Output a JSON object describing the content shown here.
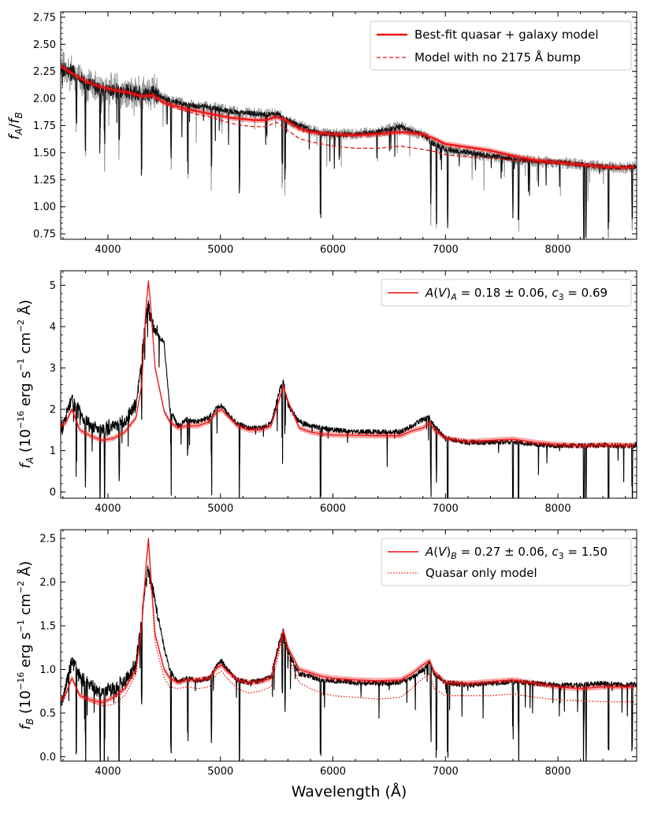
{
  "figure": {
    "xlabel": "Wavelength  (Å)"
  },
  "chart_data": [
    {
      "type": "line",
      "id": "ratio",
      "ylabel": "f_A/f_B",
      "xlim": [
        3580,
        8700
      ],
      "ylim": [
        0.7,
        2.8
      ],
      "xticks": [
        4000,
        5000,
        6000,
        7000,
        8000
      ],
      "yticks": [
        0.75,
        1.0,
        1.25,
        1.5,
        1.75,
        2.0,
        2.25,
        2.5,
        2.75
      ],
      "ytick_labels": [
        "0.75",
        "1.00",
        "1.25",
        "1.50",
        "1.75",
        "2.00",
        "2.25",
        "2.50",
        "2.75"
      ],
      "legend": [
        "Best-fit quasar + galaxy model",
        "Model with no 2175 Å bump"
      ],
      "legend_position": "upper-right",
      "series": [
        {
          "name": "Best-fit quasar + galaxy model",
          "style": "solid",
          "color": "#ee1111",
          "x": [
            3580,
            3700,
            3800,
            3900,
            4000,
            4100,
            4200,
            4300,
            4400,
            4500,
            4600,
            4700,
            4800,
            4900,
            5000,
            5100,
            5200,
            5300,
            5400,
            5500,
            5580,
            5700,
            5800,
            5900,
            6000,
            6200,
            6400,
            6600,
            6800,
            6900,
            7000,
            7200,
            7400,
            7600,
            7800,
            8000,
            8200,
            8400,
            8600,
            8680
          ],
          "y": [
            2.3,
            2.22,
            2.16,
            2.12,
            2.09,
            2.07,
            2.05,
            2.02,
            2.03,
            1.96,
            1.93,
            1.9,
            1.88,
            1.86,
            1.84,
            1.82,
            1.81,
            1.8,
            1.8,
            1.83,
            1.8,
            1.72,
            1.69,
            1.68,
            1.67,
            1.66,
            1.67,
            1.69,
            1.67,
            1.63,
            1.58,
            1.55,
            1.52,
            1.47,
            1.43,
            1.41,
            1.39,
            1.37,
            1.36,
            1.37
          ]
        },
        {
          "name": "Model with no 2175 Å bump",
          "style": "dashed",
          "color": "#ee1111",
          "x": [
            3580,
            3700,
            3800,
            3900,
            4000,
            4100,
            4200,
            4300,
            4400,
            4500,
            4600,
            4700,
            4800,
            4900,
            5000,
            5100,
            5200,
            5300,
            5400,
            5500,
            5580,
            5700,
            5800,
            5900,
            6000,
            6200,
            6400,
            6600,
            6800,
            6900,
            7000,
            7200,
            7400,
            7600,
            7800,
            8000,
            8200,
            8400,
            8600,
            8680
          ],
          "y": [
            2.3,
            2.22,
            2.16,
            2.12,
            2.09,
            2.07,
            2.05,
            2.02,
            2.02,
            1.95,
            1.91,
            1.88,
            1.85,
            1.83,
            1.8,
            1.77,
            1.75,
            1.74,
            1.74,
            1.78,
            1.72,
            1.63,
            1.6,
            1.58,
            1.56,
            1.54,
            1.54,
            1.56,
            1.53,
            1.51,
            1.48,
            1.46,
            1.45,
            1.43,
            1.41,
            1.4,
            1.39,
            1.37,
            1.36,
            1.37
          ]
        },
        {
          "name": "observed flux ratio",
          "style": "noisy",
          "color": "#111111",
          "x": [
            3580,
            3700,
            3800,
            3900,
            4000,
            4100,
            4200,
            4300,
            4400,
            4500,
            4600,
            4700,
            4800,
            4900,
            5000,
            5100,
            5200,
            5300,
            5400,
            5500,
            5580,
            5700,
            5800,
            5900,
            6000,
            6200,
            6400,
            6600,
            6800,
            6900,
            7000,
            7200,
            7400,
            7600,
            7800,
            8000,
            8200,
            8400,
            8600,
            8680
          ],
          "y": [
            2.28,
            2.23,
            2.14,
            2.1,
            2.08,
            2.07,
            2.05,
            2.04,
            2.05,
            2.0,
            1.97,
            1.94,
            1.93,
            1.92,
            1.9,
            1.88,
            1.87,
            1.86,
            1.85,
            1.86,
            1.81,
            1.75,
            1.71,
            1.68,
            1.67,
            1.67,
            1.69,
            1.74,
            1.66,
            1.58,
            1.53,
            1.5,
            1.47,
            1.44,
            1.42,
            1.41,
            1.39,
            1.37,
            1.36,
            1.37
          ]
        }
      ]
    },
    {
      "type": "line",
      "id": "fA",
      "ylabel": "f_A  (10^-16 erg s^-1 cm^-2 Å)",
      "xlim": [
        3580,
        8700
      ],
      "ylim": [
        -0.15,
        5.35
      ],
      "xticks": [
        4000,
        5000,
        6000,
        7000,
        8000
      ],
      "yticks": [
        0,
        1,
        2,
        3,
        4,
        5
      ],
      "ytick_labels": [
        "0",
        "1",
        "2",
        "3",
        "4",
        "5"
      ],
      "legend": [
        "A(V)_A = 0.18 ± 0.06, c_3 = 0.69"
      ],
      "legend_position": "upper-right",
      "series": [
        {
          "name": "A(V)_A = 0.18 ± 0.06, c_3 = 0.69",
          "style": "solid",
          "color": "#ee1111",
          "x": [
            3580,
            3620,
            3680,
            3750,
            3850,
            3950,
            4050,
            4150,
            4250,
            4300,
            4340,
            4360,
            4380,
            4420,
            4500,
            4550,
            4620,
            4700,
            4800,
            4900,
            4970,
            5010,
            5060,
            5150,
            5250,
            5350,
            5450,
            5530,
            5560,
            5600,
            5700,
            5800,
            5900,
            6000,
            6200,
            6400,
            6600,
            6700,
            6800,
            6860,
            6900,
            7000,
            7200,
            7400,
            7600,
            7800,
            8000,
            8200,
            8400,
            8600,
            8680
          ],
          "y": [
            1.6,
            1.65,
            2.0,
            1.5,
            1.35,
            1.25,
            1.3,
            1.45,
            1.8,
            2.6,
            4.5,
            5.1,
            4.5,
            3.0,
            1.95,
            1.7,
            1.55,
            1.6,
            1.6,
            1.7,
            1.95,
            2.0,
            1.85,
            1.6,
            1.5,
            1.5,
            1.6,
            2.3,
            2.55,
            2.2,
            1.55,
            1.45,
            1.4,
            1.38,
            1.37,
            1.36,
            1.36,
            1.48,
            1.55,
            1.68,
            1.5,
            1.3,
            1.22,
            1.25,
            1.28,
            1.2,
            1.15,
            1.12,
            1.14,
            1.13,
            1.13
          ]
        },
        {
          "name": "observed spectrum A",
          "style": "noisy",
          "color": "#000000",
          "x": [
            3580,
            3620,
            3680,
            3750,
            3850,
            3950,
            4050,
            4150,
            4250,
            4300,
            4340,
            4360,
            4380,
            4420,
            4500,
            4550,
            4620,
            4700,
            4800,
            4900,
            4970,
            5010,
            5060,
            5150,
            5250,
            5350,
            5450,
            5530,
            5560,
            5600,
            5700,
            5800,
            5900,
            6000,
            6200,
            6400,
            6600,
            6700,
            6800,
            6860,
            6900,
            7000,
            7200,
            7400,
            7600,
            7800,
            8000,
            8200,
            8400,
            8600,
            8680
          ],
          "y": [
            1.5,
            1.8,
            2.2,
            1.9,
            1.6,
            1.5,
            1.6,
            1.7,
            2.1,
            3.2,
            4.3,
            4.5,
            4.2,
            3.9,
            3.6,
            2.0,
            1.6,
            1.75,
            1.7,
            1.8,
            2.05,
            2.1,
            1.9,
            1.65,
            1.55,
            1.55,
            1.65,
            2.5,
            2.7,
            2.1,
            1.7,
            1.6,
            1.55,
            1.5,
            1.45,
            1.45,
            1.45,
            1.6,
            1.75,
            1.8,
            1.6,
            1.3,
            1.2,
            1.2,
            1.22,
            1.15,
            1.12,
            1.12,
            1.13,
            1.12,
            1.12
          ]
        }
      ]
    },
    {
      "type": "line",
      "id": "fB",
      "ylabel": "f_B  (10^-16 erg s^-1 cm^-2 Å)",
      "xlim": [
        3580,
        8700
      ],
      "ylim": [
        -0.05,
        2.6
      ],
      "xticks": [
        4000,
        5000,
        6000,
        7000,
        8000
      ],
      "yticks": [
        0.0,
        0.5,
        1.0,
        1.5,
        2.0,
        2.5
      ],
      "ytick_labels": [
        "0.0",
        "0.5",
        "1.0",
        "1.5",
        "2.0",
        "2.5"
      ],
      "legend": [
        "A(V)_B = 0.27 ± 0.06, c_3 = 1.50",
        "Quasar only model"
      ],
      "legend_position": "upper-right",
      "series": [
        {
          "name": "A(V)_B = 0.27 ± 0.06, c_3 = 1.50",
          "style": "solid",
          "color": "#ee1111",
          "x": [
            3580,
            3620,
            3680,
            3750,
            3850,
            3950,
            4050,
            4150,
            4250,
            4300,
            4340,
            4360,
            4380,
            4420,
            4500,
            4550,
            4620,
            4700,
            4800,
            4900,
            4970,
            5010,
            5060,
            5150,
            5250,
            5350,
            5450,
            5530,
            5560,
            5600,
            5700,
            5800,
            5900,
            6000,
            6200,
            6400,
            6600,
            6700,
            6800,
            6860,
            6900,
            7000,
            7200,
            7400,
            7600,
            7800,
            8000,
            8200,
            8400,
            8600,
            8680
          ],
          "y": [
            0.65,
            0.7,
            0.9,
            0.7,
            0.65,
            0.62,
            0.68,
            0.78,
            1.0,
            1.5,
            2.2,
            2.5,
            2.1,
            1.4,
            1.0,
            0.9,
            0.85,
            0.88,
            0.88,
            0.9,
            1.02,
            1.05,
            0.98,
            0.88,
            0.85,
            0.86,
            0.9,
            1.3,
            1.45,
            1.25,
            1.0,
            0.96,
            0.92,
            0.9,
            0.88,
            0.87,
            0.88,
            0.95,
            1.05,
            1.1,
            0.97,
            0.85,
            0.84,
            0.86,
            0.88,
            0.84,
            0.8,
            0.78,
            0.8,
            0.8,
            0.8
          ]
        },
        {
          "name": "Quasar only model",
          "style": "dotted",
          "color": "#ee1111",
          "x": [
            3580,
            3620,
            3680,
            3750,
            3850,
            3950,
            4050,
            4150,
            4250,
            4300,
            4340,
            4360,
            4380,
            4420,
            4500,
            4550,
            4620,
            4700,
            4800,
            4900,
            4970,
            5010,
            5060,
            5150,
            5250,
            5350,
            5450,
            5530,
            5560,
            5600,
            5700,
            5800,
            5900,
            6000,
            6200,
            6400,
            6600,
            6700,
            6800,
            6860,
            6900,
            7000,
            7200,
            7400,
            7600,
            7800,
            8000,
            8200,
            8400,
            8600,
            8680
          ],
          "y": [
            0.65,
            0.7,
            0.9,
            0.7,
            0.63,
            0.58,
            0.6,
            0.7,
            0.95,
            1.45,
            2.2,
            2.48,
            2.05,
            1.3,
            0.9,
            0.8,
            0.78,
            0.8,
            0.78,
            0.8,
            0.95,
            0.98,
            0.9,
            0.78,
            0.73,
            0.75,
            0.8,
            1.25,
            1.42,
            1.15,
            0.85,
            0.78,
            0.73,
            0.7,
            0.68,
            0.66,
            0.68,
            0.78,
            0.9,
            0.95,
            0.78,
            0.7,
            0.7,
            0.7,
            0.72,
            0.68,
            0.65,
            0.64,
            0.63,
            0.63,
            0.63
          ]
        },
        {
          "name": "observed spectrum B",
          "style": "noisy",
          "color": "#000000",
          "x": [
            3580,
            3620,
            3680,
            3750,
            3850,
            3950,
            4050,
            4150,
            4250,
            4300,
            4340,
            4360,
            4380,
            4420,
            4500,
            4550,
            4620,
            4700,
            4800,
            4900,
            4970,
            5010,
            5060,
            5150,
            5250,
            5350,
            5450,
            5530,
            5560,
            5600,
            5700,
            5800,
            5900,
            6000,
            6200,
            6400,
            6600,
            6700,
            6800,
            6860,
            6900,
            7000,
            7200,
            7400,
            7600,
            7800,
            8000,
            8200,
            8400,
            8600,
            8680
          ],
          "y": [
            0.6,
            0.8,
            1.1,
            0.9,
            0.8,
            0.72,
            0.78,
            0.85,
            1.05,
            1.6,
            2.05,
            2.15,
            2.0,
            1.8,
            1.25,
            1.0,
            0.85,
            0.9,
            0.87,
            0.9,
            1.05,
            1.1,
            1.0,
            0.88,
            0.85,
            0.87,
            0.92,
            1.35,
            1.45,
            1.2,
            0.95,
            0.92,
            0.88,
            0.87,
            0.85,
            0.84,
            0.85,
            0.9,
            1.0,
            1.08,
            0.95,
            0.85,
            0.82,
            0.84,
            0.86,
            0.84,
            0.82,
            0.82,
            0.84,
            0.82,
            0.83
          ]
        }
      ]
    }
  ]
}
